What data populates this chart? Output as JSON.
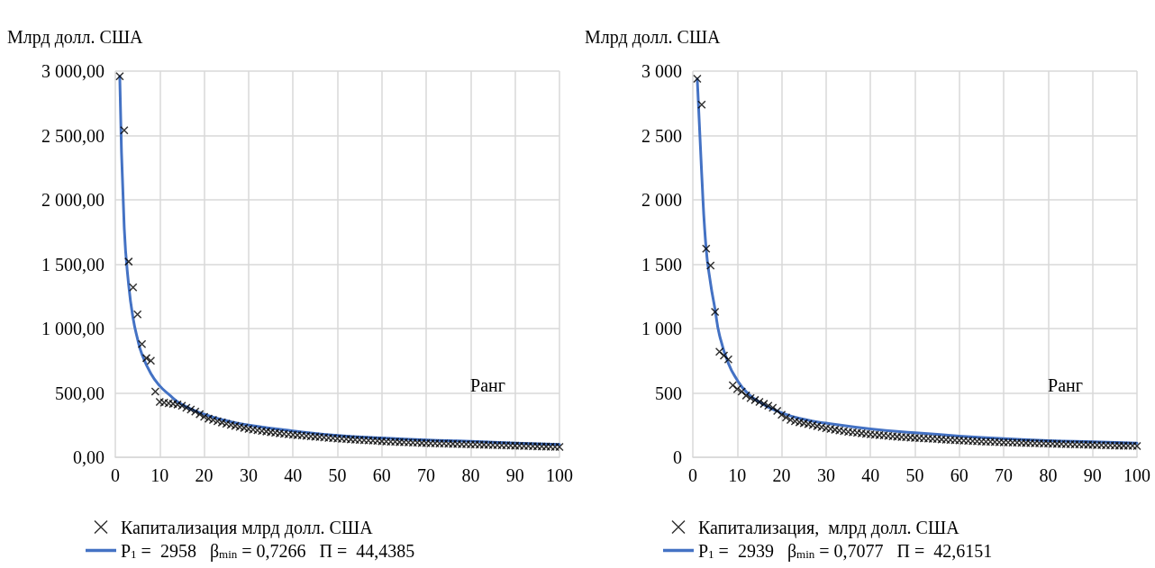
{
  "chart_data": [
    {
      "type": "scatter",
      "xlabel": "Ранг",
      "ylabel": "Млрд долл. США",
      "xlim": [
        0,
        100
      ],
      "xticks": [
        0,
        10,
        20,
        30,
        40,
        50,
        60,
        70,
        80,
        90,
        100
      ],
      "ylim": [
        0,
        3000
      ],
      "yticks": [
        {
          "value": 0,
          "label": "0,00"
        },
        {
          "value": 500,
          "label": "500,00"
        },
        {
          "value": 1000,
          "label": "1 000,00"
        },
        {
          "value": 1500,
          "label": "1 500,00"
        },
        {
          "value": 2000,
          "label": "2 000,00"
        },
        {
          "value": 2500,
          "label": "2 500,00"
        },
        {
          "value": 3000,
          "label": "3 000,00"
        }
      ],
      "grid": true,
      "legend": "bottom",
      "series": [
        {
          "name": "Капитализация млрд долл. США",
          "marker": "cross",
          "color": "#000000",
          "x": [
            1,
            2,
            3,
            4,
            5,
            6,
            7,
            8,
            9,
            10,
            11,
            12,
            13,
            14,
            15,
            16,
            17,
            18,
            19,
            20,
            21,
            22,
            23,
            24,
            25,
            26,
            27,
            28,
            29,
            30,
            31,
            32,
            33,
            34,
            35,
            36,
            37,
            38,
            39,
            40,
            41,
            42,
            43,
            44,
            45,
            46,
            47,
            48,
            49,
            50,
            51,
            52,
            53,
            54,
            55,
            56,
            57,
            58,
            59,
            60,
            61,
            62,
            63,
            64,
            65,
            66,
            67,
            68,
            69,
            70,
            71,
            72,
            73,
            74,
            75,
            76,
            77,
            78,
            79,
            80,
            81,
            82,
            83,
            84,
            85,
            86,
            87,
            88,
            89,
            90,
            91,
            92,
            93,
            94,
            95,
            96,
            97,
            98,
            99,
            100
          ],
          "values": [
            2960,
            2540,
            1520,
            1320,
            1110,
            880,
            770,
            750,
            510,
            430,
            425,
            420,
            415,
            410,
            400,
            385,
            370,
            355,
            335,
            315,
            300,
            290,
            280,
            270,
            260,
            252,
            244,
            236,
            228,
            220,
            215,
            210,
            205,
            200,
            195,
            190,
            186,
            182,
            178,
            175,
            172,
            169,
            166,
            163,
            160,
            157,
            154,
            151,
            148,
            145,
            143,
            141,
            139,
            137,
            135,
            133,
            131,
            129,
            127,
            125,
            123,
            121,
            120,
            118,
            117,
            115,
            114,
            113,
            111,
            110,
            109,
            108,
            107,
            106,
            105,
            104,
            103,
            102,
            101,
            100,
            99,
            98,
            97,
            96,
            95,
            94,
            93,
            92,
            91,
            90,
            89,
            88,
            87,
            86,
            85,
            84,
            83,
            82,
            81,
            80
          ]
        },
        {
          "name": "P$_{1}$ =  2958   β$_{min}$ = 0,7266   Π =  44,4385",
          "type": "line",
          "marker": "none",
          "color": "#4472c4",
          "x": [
            1,
            2,
            3,
            4,
            5,
            6,
            8,
            10,
            12,
            15,
            20,
            25,
            30,
            40,
            50,
            60,
            70,
            80,
            90,
            100
          ],
          "values": [
            2958,
            1790,
            1340,
            1080,
            920,
            800,
            650,
            555,
            490,
            410,
            335,
            285,
            250,
            205,
            170,
            150,
            135,
            125,
            110,
            100
          ]
        }
      ]
    },
    {
      "type": "scatter",
      "xlabel": "Ранг",
      "ylabel": "Млрд долл. США",
      "xlim": [
        0,
        100
      ],
      "xticks": [
        0,
        10,
        20,
        30,
        40,
        50,
        60,
        70,
        80,
        90,
        100
      ],
      "ylim": [
        0,
        3000
      ],
      "yticks": [
        {
          "value": 0,
          "label": "0"
        },
        {
          "value": 500,
          "label": "500"
        },
        {
          "value": 1000,
          "label": "1 000"
        },
        {
          "value": 1500,
          "label": "1 500"
        },
        {
          "value": 2000,
          "label": "2 000"
        },
        {
          "value": 2500,
          "label": "2 500"
        },
        {
          "value": 3000,
          "label": "3 000"
        }
      ],
      "grid": true,
      "legend": "bottom",
      "series": [
        {
          "name": "Капитализация,  млрд долл. США",
          "marker": "cross",
          "color": "#000000",
          "x": [
            1,
            2,
            3,
            4,
            5,
            6,
            7,
            8,
            9,
            10,
            11,
            12,
            13,
            14,
            15,
            16,
            17,
            18,
            19,
            20,
            21,
            22,
            23,
            24,
            25,
            26,
            27,
            28,
            29,
            30,
            31,
            32,
            33,
            34,
            35,
            36,
            37,
            38,
            39,
            40,
            41,
            42,
            43,
            44,
            45,
            46,
            47,
            48,
            49,
            50,
            51,
            52,
            53,
            54,
            55,
            56,
            57,
            58,
            59,
            60,
            61,
            62,
            63,
            64,
            65,
            66,
            67,
            68,
            69,
            70,
            71,
            72,
            73,
            74,
            75,
            76,
            77,
            78,
            79,
            80,
            81,
            82,
            83,
            84,
            85,
            86,
            87,
            88,
            89,
            90,
            91,
            92,
            93,
            94,
            95,
            96,
            97,
            98,
            99,
            100
          ],
          "values": [
            2940,
            2740,
            1620,
            1490,
            1130,
            820,
            790,
            760,
            560,
            530,
            510,
            480,
            460,
            445,
            430,
            415,
            400,
            385,
            360,
            330,
            310,
            290,
            280,
            272,
            265,
            258,
            250,
            242,
            234,
            226,
            220,
            214,
            208,
            203,
            198,
            194,
            190,
            186,
            182,
            178,
            175,
            172,
            169,
            166,
            163,
            160,
            157,
            155,
            153,
            151,
            149,
            147,
            145,
            143,
            141,
            139,
            137,
            135,
            133,
            131,
            129,
            127,
            126,
            124,
            123,
            121,
            120,
            119,
            117,
            116,
            115,
            114,
            113,
            112,
            111,
            110,
            109,
            108,
            107,
            106,
            105,
            104,
            103,
            102,
            101,
            100,
            99,
            98,
            97,
            96,
            95,
            94,
            93,
            92,
            91,
            90,
            90,
            89,
            89,
            88
          ]
        },
        {
          "name": "P$_{1}$ =  2939   β$_{min}$ = 0,7077   Π =  42,6151",
          "type": "line",
          "marker": "none",
          "color": "#4472c4",
          "x": [
            1,
            2,
            3,
            4,
            5,
            6,
            8,
            10,
            12,
            15,
            20,
            25,
            30,
            40,
            50,
            60,
            70,
            80,
            90,
            100
          ],
          "values": [
            2939,
            2200,
            1620,
            1350,
            1150,
            950,
            730,
            600,
            510,
            430,
            345,
            295,
            265,
            220,
            190,
            165,
            145,
            130,
            120,
            110
          ]
        }
      ]
    }
  ]
}
